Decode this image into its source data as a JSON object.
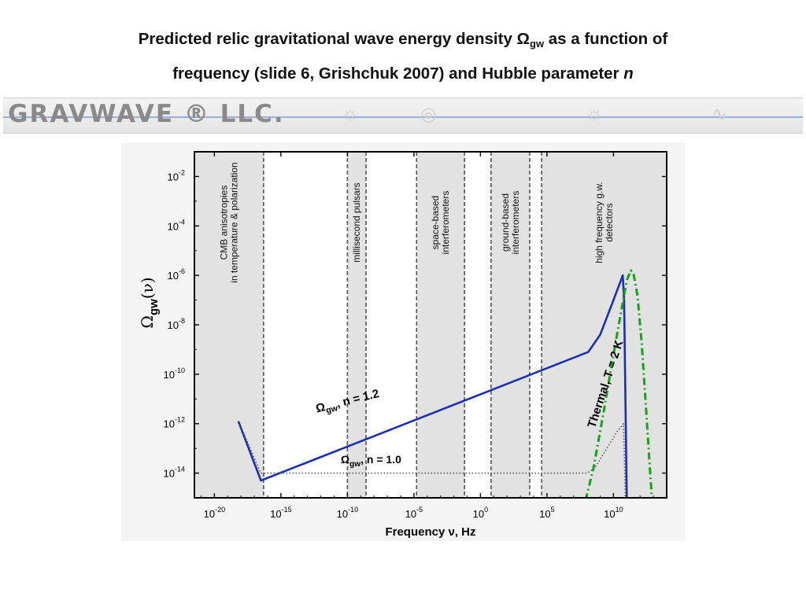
{
  "slide": {
    "title_line1_a": "Predicted relic gravitational wave energy density Ω",
    "title_line1_sub": "gw",
    "title_line1_b": " as a function of",
    "title_line2_a": "frequency (slide 6, Grishchuk 2007) and Hubble parameter ",
    "title_line2_b": "n",
    "banner_logo": "GRAVWAVE ® LLC."
  },
  "chart_data": {
    "type": "line",
    "title": "",
    "xlabel": "Frequency ν, Hz",
    "ylabel": "Ω",
    "ylabel_sub": "gw",
    "ylabel_suffix": "(ν)",
    "x_scale": "log10",
    "y_scale": "log10",
    "xlim_log10": [
      -21.5,
      14
    ],
    "ylim_log10": [
      -15,
      -1
    ],
    "x_ticks": [
      {
        "exp": -20,
        "base": "10",
        "sup": "-20"
      },
      {
        "exp": -15,
        "base": "10",
        "sup": "-15"
      },
      {
        "exp": -10,
        "base": "10",
        "sup": "-10"
      },
      {
        "exp": -5,
        "base": "10",
        "sup": "-5"
      },
      {
        "exp": 0,
        "base": "10",
        "sup": "0"
      },
      {
        "exp": 5,
        "base": "10",
        "sup": "5"
      },
      {
        "exp": 10,
        "base": "10",
        "sup": "10"
      }
    ],
    "y_ticks": [
      {
        "exp": -2,
        "base": "10",
        "sup": "-2"
      },
      {
        "exp": -4,
        "base": "10",
        "sup": "-4"
      },
      {
        "exp": -6,
        "base": "10",
        "sup": "-6"
      },
      {
        "exp": -8,
        "base": "10",
        "sup": "-8"
      },
      {
        "exp": -10,
        "base": "10",
        "sup": "-10"
      },
      {
        "exp": -12,
        "base": "10",
        "sup": "-12"
      },
      {
        "exp": -14,
        "base": "10",
        "sup": "-14"
      }
    ],
    "bands": [
      {
        "from": -21.5,
        "to": -16.3,
        "lines": [
          "CMB anisotropies",
          "in temperature & polarization"
        ]
      },
      {
        "from": -10.0,
        "to": -8.6,
        "lines": [
          "millisecond pulsars"
        ]
      },
      {
        "from": -4.8,
        "to": -1.2,
        "lines": [
          "space-based",
          "interferometers"
        ]
      },
      {
        "from": 0.8,
        "to": 3.7,
        "lines": [
          "ground-based",
          "interferometers"
        ]
      },
      {
        "from": 4.6,
        "to": 14,
        "lines": [
          "high frequency g.w.",
          "detectors"
        ]
      }
    ],
    "band_edges": [
      -16.3,
      -10.0,
      -8.6,
      -4.8,
      -1.2,
      0.8,
      3.7,
      4.6
    ],
    "series": [
      {
        "label": "Ω",
        "label_sub": "gw",
        "label_suffix": ", n = 1.2",
        "style": "solid",
        "color": "#1c2fb0",
        "points": [
          [
            -18.2,
            -11.9
          ],
          [
            -16.5,
            -14.3
          ],
          [
            8.1,
            -9.1
          ],
          [
            9.0,
            -8.4
          ],
          [
            10.0,
            -7.0
          ],
          [
            10.7,
            -6.0
          ],
          [
            10.8,
            -7.0
          ],
          [
            11.0,
            -15.1
          ]
        ]
      },
      {
        "label": "Ω",
        "label_sub": "gw",
        "label_suffix": ", n = 1.0",
        "style": "dotted",
        "color": "#555555",
        "points": [
          [
            -18.2,
            -11.9
          ],
          [
            -16.5,
            -14.0
          ],
          [
            -16.4,
            -14.0
          ],
          [
            8.0,
            -14.0
          ],
          [
            8.6,
            -13.8
          ],
          [
            9.5,
            -13.0
          ],
          [
            10.3,
            -12.3
          ],
          [
            10.75,
            -12.0
          ],
          [
            10.9,
            -15.1
          ]
        ]
      },
      {
        "label": "Thermal, T = 2 K",
        "style": "dashdot",
        "color": "#1aa01a",
        "points": [
          [
            7.9,
            -15.1
          ],
          [
            8.5,
            -13.8
          ],
          [
            9.3,
            -11.4
          ],
          [
            10.0,
            -9.2
          ],
          [
            10.6,
            -7.4
          ],
          [
            11.0,
            -6.2
          ],
          [
            11.3,
            -5.8
          ],
          [
            11.5,
            -5.9
          ],
          [
            11.8,
            -6.8
          ],
          [
            12.1,
            -8.6
          ],
          [
            12.4,
            -11.0
          ],
          [
            12.7,
            -13.5
          ],
          [
            12.9,
            -15.1
          ]
        ]
      }
    ],
    "grid": false,
    "legend": "none",
    "colors": {
      "band": "#e2e2e2",
      "edge": "#555555",
      "frame": "#000000"
    }
  }
}
